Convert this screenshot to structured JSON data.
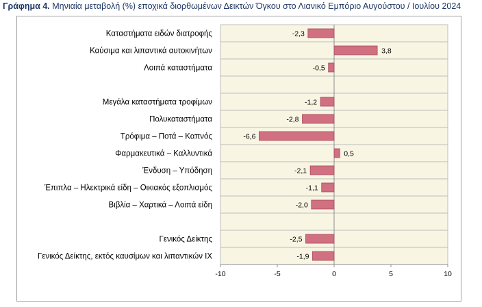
{
  "title": {
    "lead": "Γράφημα 4.",
    "text": " Μηνιαία μεταβολή (%) εποχικά διορθωμένων Δεικτών Όγκου στο Λιανικό Εμπόριο Αυγούστου / Ιουλίου 2024"
  },
  "colors": {
    "bar": "#d07080",
    "bar_border": "#a84a5c",
    "plot_bg": "#f8f5e3",
    "grid": "#bdbdbd",
    "title": "#1f3864"
  },
  "chart_data": {
    "type": "bar",
    "orientation": "horizontal",
    "xlim": [
      -10,
      10
    ],
    "xticks": [
      -10,
      -5,
      0,
      5,
      10
    ],
    "grid": true,
    "categories": [
      "Καταστήματα ειδών διατροφής",
      "Καύσιμα και λιπαντικά αυτοκινήτων",
      "Λοιπά καταστήματα",
      "",
      "Μεγάλα καταστήματα τροφίμων",
      "Πολυκαταστήματα",
      "Τρόφιμα – Ποτά – Καπνός",
      "Φαρμακευτικά – Καλλυντικά",
      "Ένδυση – Υπόδηση",
      "Έπιπλα – Ηλεκτρικά είδη – Οικιακός εξοπλισμός",
      "Βιβλία – Χαρτικά – Λοιπά είδη",
      "",
      "Γενικός Δείκτης",
      "Γενικός Δείκτης, εκτός καυσίμων και λιπαντικών ΙΧ"
    ],
    "values": [
      -2.3,
      3.8,
      -0.5,
      null,
      -1.2,
      -2.8,
      -6.6,
      0.5,
      -2.1,
      -1.1,
      -2.0,
      null,
      -2.5,
      -1.9
    ],
    "labels": [
      "-2,3",
      "3,8",
      "-0,5",
      "",
      "-1,2",
      "-2,8",
      "-6,6",
      "0,5",
      "-2,1",
      "-1,1",
      "-2,0",
      "",
      "-2,5",
      "-1,9"
    ]
  }
}
